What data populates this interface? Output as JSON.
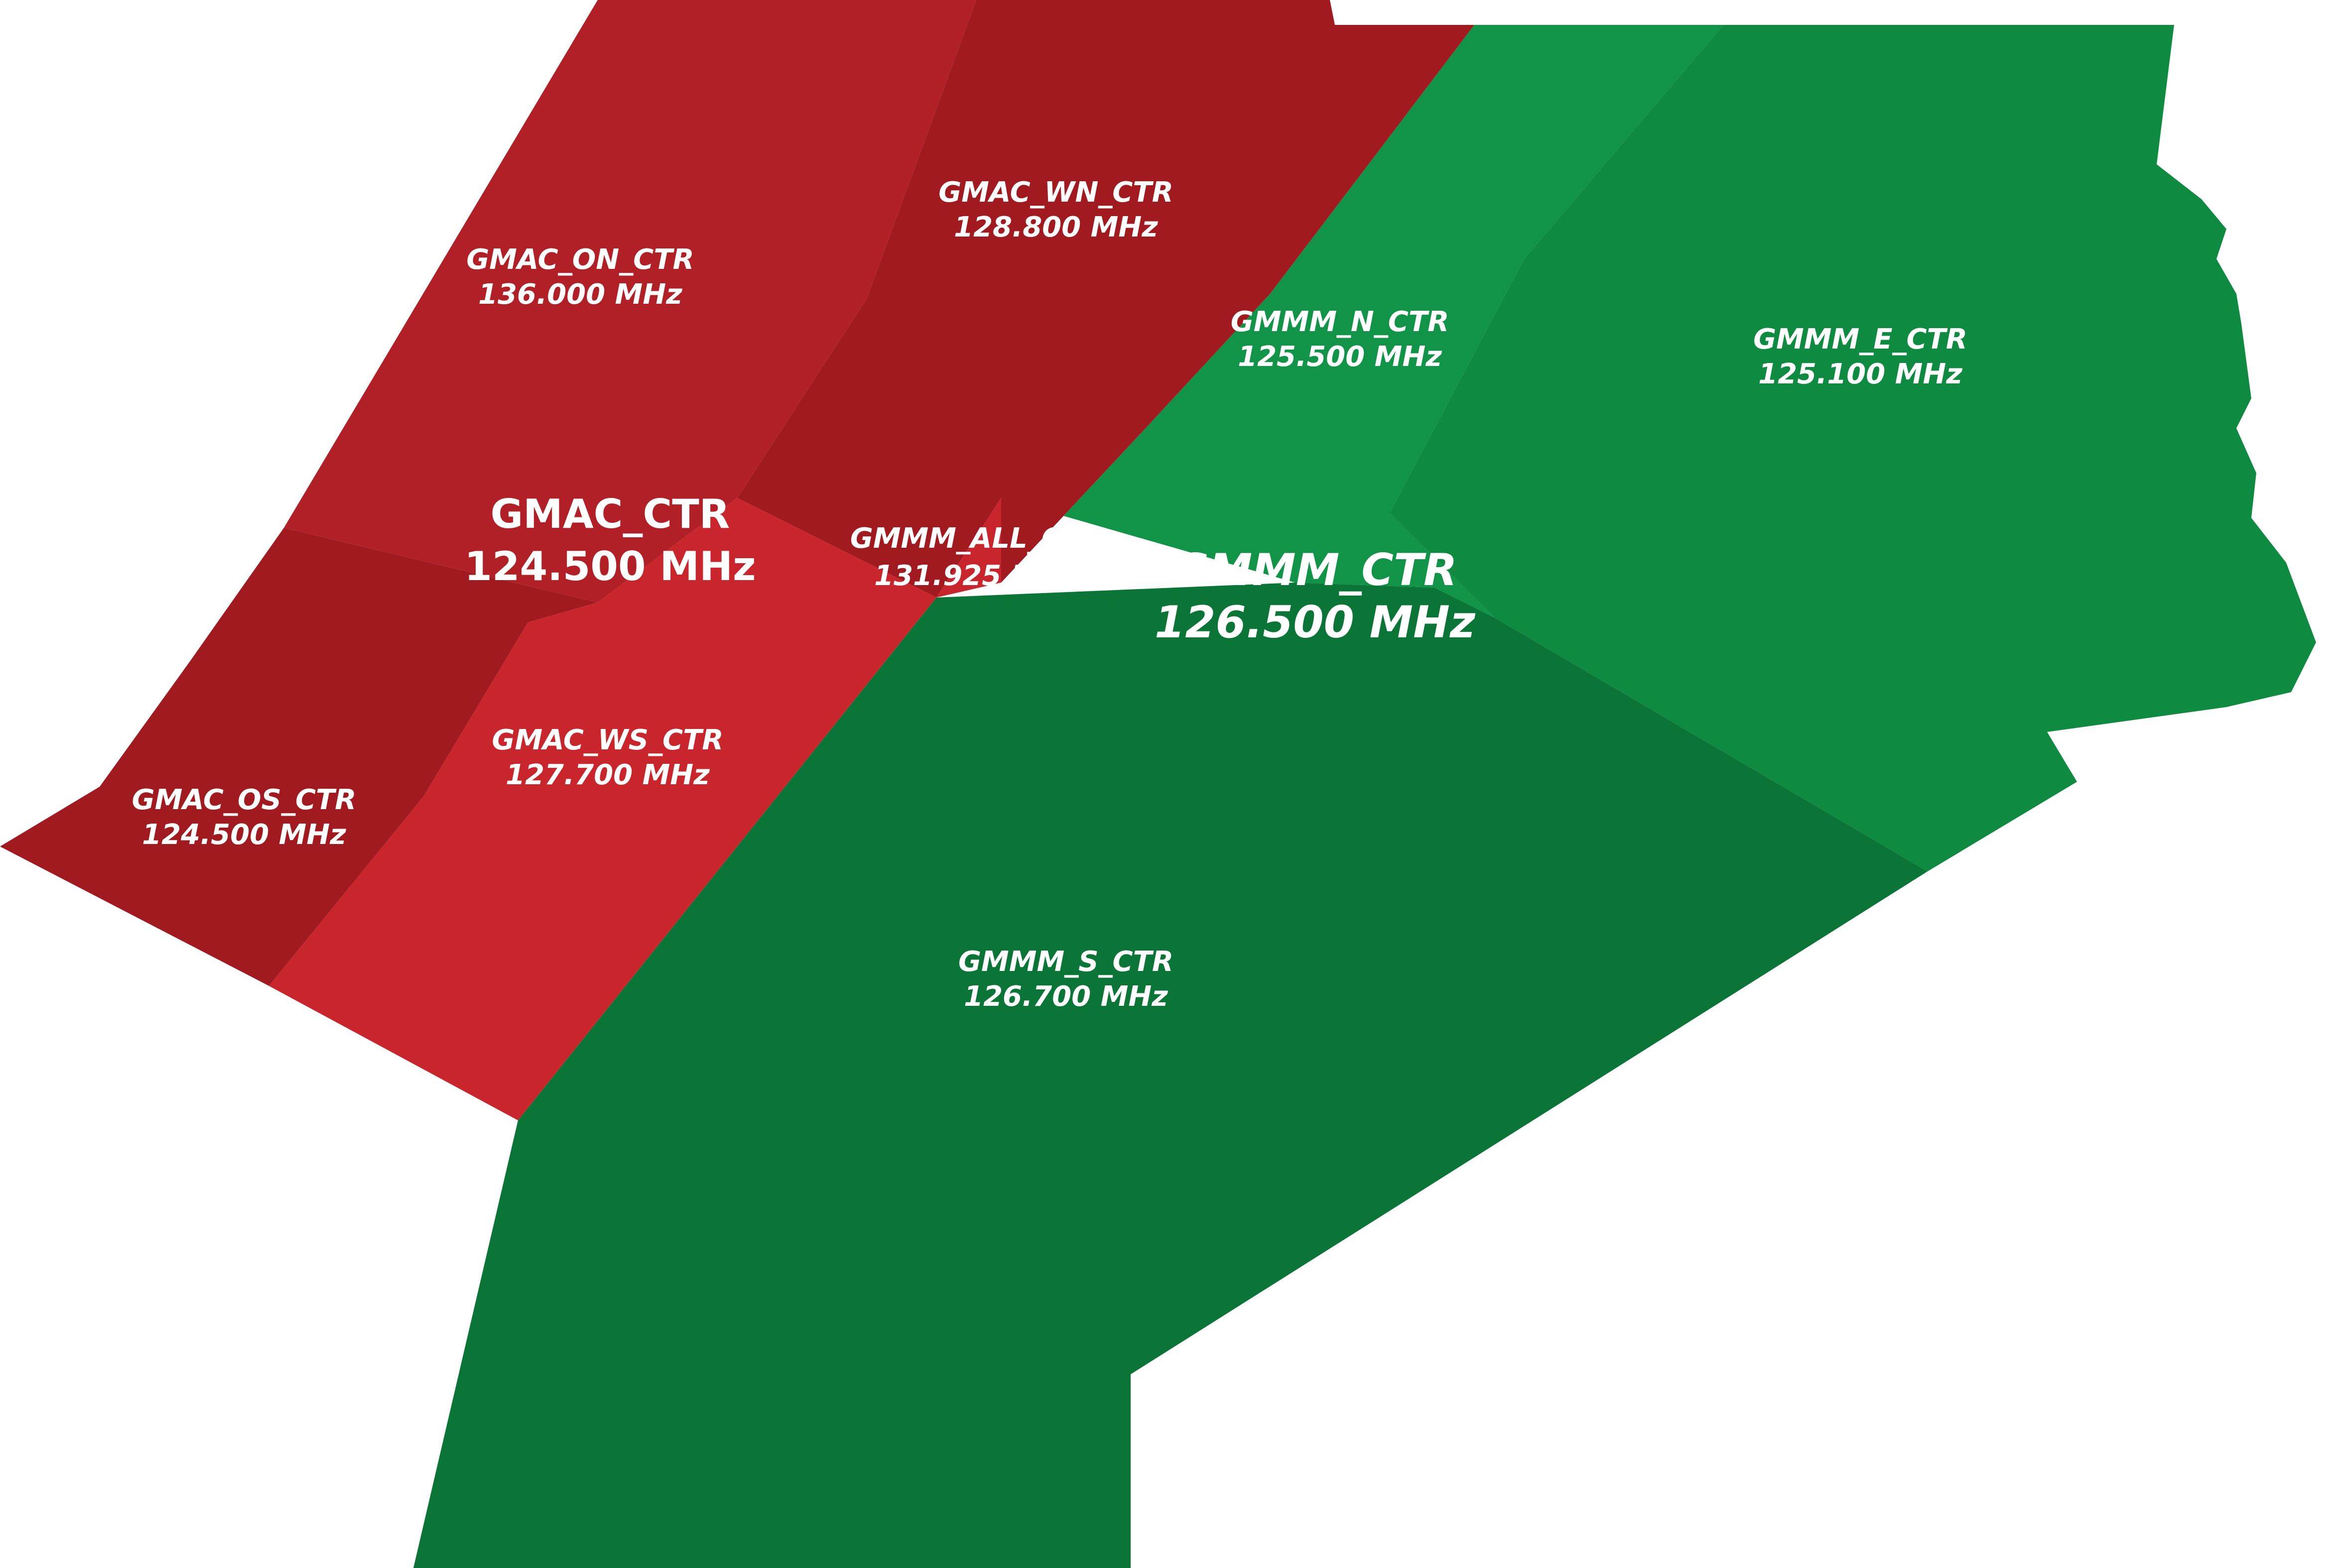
{
  "palette": {
    "red_light": "#c9252c",
    "red_mid": "#b11f27",
    "red_dark": "#a01a20",
    "green_light": "#119448",
    "green_mid": "#0f8a41",
    "green_dark": "#0b7537"
  },
  "sectors": {
    "gmac_on": {
      "name": "GMAC_ON_CTR",
      "freq": "136.000 MHz"
    },
    "gmac_wn": {
      "name": "GMAC_WN_CTR",
      "freq": "128.800 MHz"
    },
    "gmac_os": {
      "name": "GMAC_OS_CTR",
      "freq": "124.500 MHz"
    },
    "gmac_ws": {
      "name": "GMAC_WS_CTR",
      "freq": "127.700 MHz"
    },
    "gmmm_n": {
      "name": "GMMM_N_CTR",
      "freq": "125.500 MHz"
    },
    "gmmm_e": {
      "name": "GMMM_E_CTR",
      "freq": "125.100 MHz"
    },
    "gmmm_s": {
      "name": "GMMM_S_CTR",
      "freq": "126.700 MHz"
    },
    "gmmm_all": {
      "name": "GMMM_ALL_CTR",
      "freq": "131.925 MHz"
    }
  },
  "fir": {
    "gmac": {
      "name": "GMAC_CTR",
      "freq": "124.500 MHz"
    },
    "gmmm": {
      "name": "GMMM_CTR",
      "freq": "126.500 MHz"
    }
  }
}
